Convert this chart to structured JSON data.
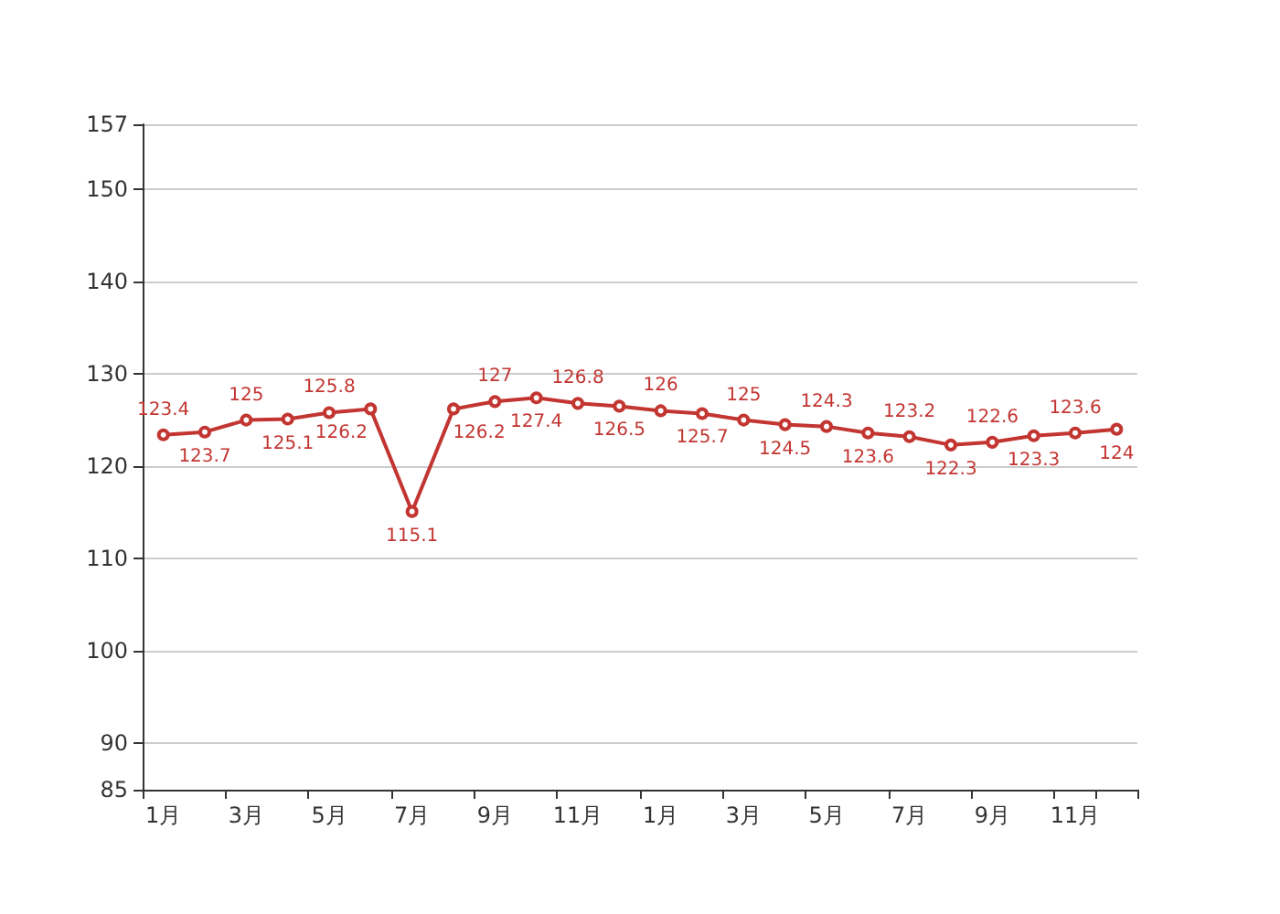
{
  "chart_data": {
    "type": "line",
    "categories": [
      "1月",
      null,
      "3月",
      null,
      "5月",
      null,
      "7月",
      null,
      "9月",
      null,
      "11月",
      null,
      "1月",
      null,
      "3月",
      null,
      "5月",
      null,
      "7月",
      null,
      "9月",
      null,
      "11月",
      null
    ],
    "series": [
      {
        "color": "#c23531",
        "values": [
          123.4,
          123.7,
          125,
          125.1,
          125.8,
          126.2,
          115.1,
          126.2,
          127,
          127.4,
          126.8,
          126.5,
          126,
          125.7,
          125,
          124.5,
          124.3,
          123.6,
          123.2,
          122.3,
          122.6,
          123.3,
          123.6,
          124
        ]
      }
    ],
    "ylim": [
      85,
      157
    ],
    "yticks": [
      85,
      90,
      100,
      110,
      120,
      130,
      140,
      150,
      157
    ],
    "grid": "y",
    "marker": "circle",
    "line_style": "solid",
    "data_labels": true
  }
}
